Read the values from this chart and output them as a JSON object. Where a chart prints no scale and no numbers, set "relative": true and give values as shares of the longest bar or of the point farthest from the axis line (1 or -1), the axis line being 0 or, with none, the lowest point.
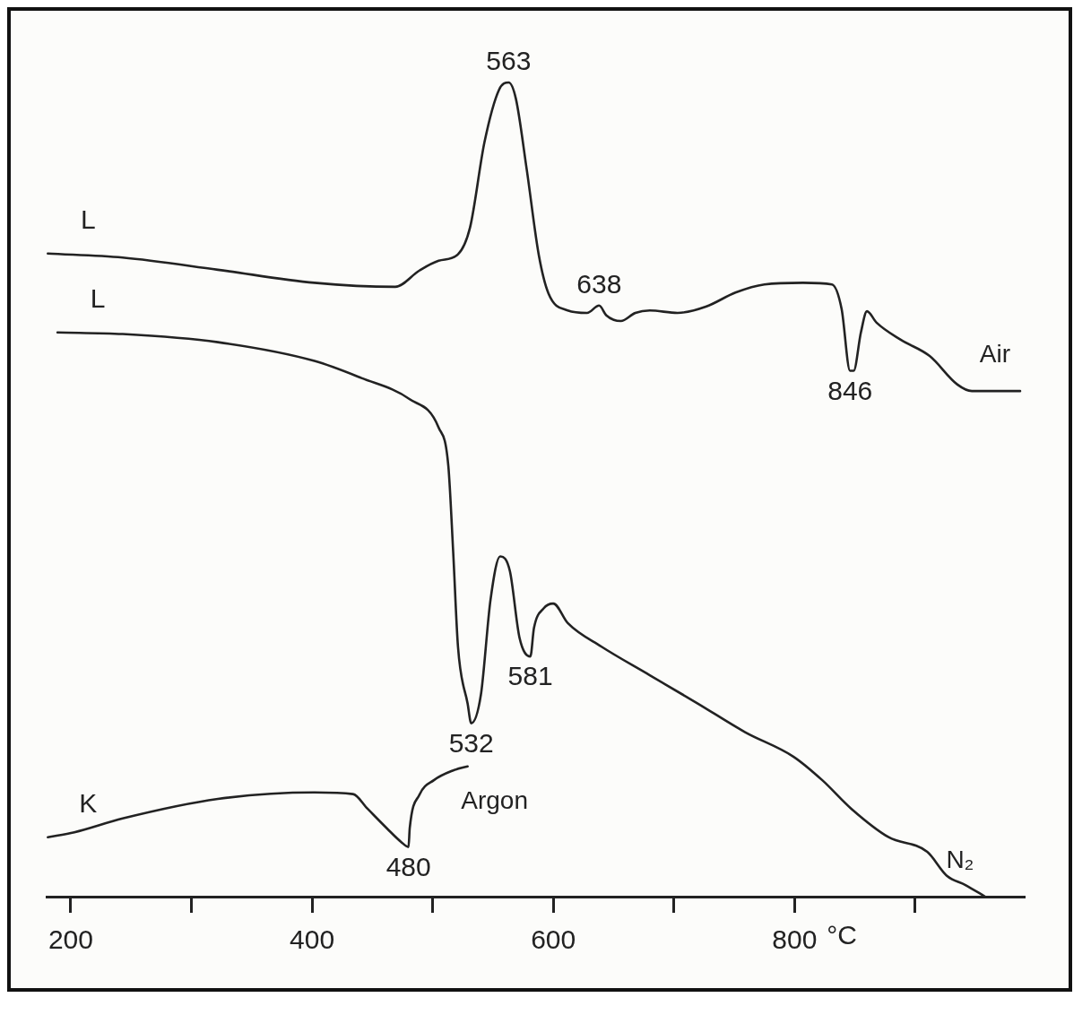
{
  "chart_data": {
    "type": "line",
    "relative": true,
    "xlabel": "°C",
    "xlim": [
      180,
      990
    ],
    "xticks": [
      200,
      {
        "value": 300,
        "label": null
      },
      400,
      {
        "value": 500,
        "label": null
      },
      600,
      {
        "value": 700,
        "label": null
      },
      800,
      {
        "value": 900,
        "label": null
      }
    ],
    "grid": false,
    "legend": false,
    "marker": "none",
    "line_style": "solid",
    "tick_labels": "x",
    "series": [
      {
        "name": "Air",
        "color": "#222222",
        "x": [
          181,
          243,
          322,
          402,
          469,
          489,
          505,
          521,
          531,
          543,
          555,
          563,
          569,
          578,
          588,
          596,
          612,
          628,
          638,
          644,
          656,
          668,
          680,
          703,
          727,
          751,
          775,
          807,
          831,
          839,
          846,
          849,
          855,
          860,
          868,
          888,
          912,
          935,
          947,
          987
        ],
        "values": [
          0.79,
          0.785,
          0.77,
          0.754,
          0.749,
          0.769,
          0.781,
          0.789,
          0.822,
          0.927,
          0.991,
          1,
          0.98,
          0.893,
          0.788,
          0.741,
          0.72,
          0.717,
          0.726,
          0.714,
          0.707,
          0.717,
          0.72,
          0.717,
          0.725,
          0.742,
          0.752,
          0.754,
          0.752,
          0.722,
          0.646,
          0.646,
          0.693,
          0.719,
          0.705,
          0.684,
          0.664,
          0.629,
          0.621,
          0.621
        ]
      },
      {
        "name": "N₂",
        "color": "#222222",
        "x": [
          189,
          243,
          322,
          402,
          441,
          481,
          505,
          513,
          517,
          521,
          529,
          532,
          540,
          548,
          556,
          564,
          572,
          581,
          584,
          592,
          600,
          612,
          640,
          680,
          720,
          759,
          799,
          823,
          847,
          878,
          910,
          926,
          942,
          958
        ],
        "values": [
          0.693,
          0.691,
          0.681,
          0.658,
          0.637,
          0.611,
          0.576,
          0.529,
          0.424,
          0.307,
          0.237,
          0.213,
          0.248,
          0.365,
          0.418,
          0.4,
          0.318,
          0.295,
          0.33,
          0.354,
          0.36,
          0.336,
          0.307,
          0.272,
          0.237,
          0.202,
          0.172,
          0.143,
          0.108,
          0.073,
          0.055,
          0.026,
          0.014,
          0
        ]
      },
      {
        "name": "Argon",
        "color": "#222222",
        "x": [
          181,
          203,
          243,
          322,
          402,
          434,
          446,
          462,
          474,
          480,
          481,
          489,
          501,
          517,
          529
        ],
        "values": [
          0.073,
          0.079,
          0.096,
          0.12,
          0.128,
          0.126,
          0.108,
          0.084,
          0.067,
          0.061,
          0.084,
          0.125,
          0.143,
          0.155,
          0.16
        ]
      }
    ],
    "annotations": [
      {
        "text": "563",
        "x": 563,
        "y": 1
      },
      {
        "text": "638",
        "x": 638,
        "y": 0.726
      },
      {
        "text": "846",
        "x": 846,
        "y": 0.646
      },
      {
        "text": "581",
        "x": 581,
        "y": 0.295
      },
      {
        "text": "532",
        "x": 532,
        "y": 0.213
      },
      {
        "text": "480",
        "x": 480,
        "y": 0.061
      },
      "L",
      "L",
      "K"
    ]
  }
}
